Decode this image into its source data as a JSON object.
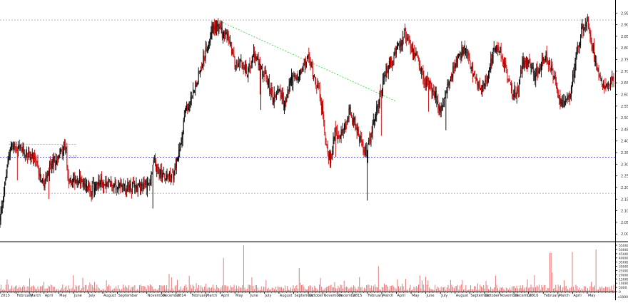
{
  "chart_data": [
    {
      "panel": "price",
      "type": "candlestick",
      "title": "",
      "xlabel": "",
      "ylabel": "",
      "ylim": [
        1.97,
        3.0
      ],
      "grid": false,
      "y_ticks": [
        "2.95",
        "2.90",
        "2.85",
        "2.80",
        "2.75",
        "2.70",
        "2.65",
        "2.60",
        "2.55",
        "2.50",
        "2.45",
        "2.40",
        "2.35",
        "2.30",
        "2.25",
        "2.20",
        "2.15",
        "2.10",
        "2.05",
        "2.00"
      ],
      "x_axis_labels": [
        {
          "label": "2013",
          "t": 0
        },
        {
          "label": "February",
          "t": 1.1
        },
        {
          "label": "March",
          "t": 2.0
        },
        {
          "label": "April",
          "t": 3.0
        },
        {
          "label": "May",
          "t": 4.0
        },
        {
          "label": "June",
          "t": 5.0
        },
        {
          "label": "July",
          "t": 6.0
        },
        {
          "label": "August",
          "t": 7.0
        },
        {
          "label": "September",
          "t": 8.0
        },
        {
          "label": "November",
          "t": 10.0
        },
        {
          "label": "December",
          "t": 11.0
        },
        {
          "label": "2014",
          "t": 12.0
        },
        {
          "label": "February",
          "t": 13.0
        },
        {
          "label": "March",
          "t": 14.0
        },
        {
          "label": "April",
          "t": 15.0
        },
        {
          "label": "May",
          "t": 16.0
        },
        {
          "label": "June",
          "t": 17.0
        },
        {
          "label": "July",
          "t": 18.0
        },
        {
          "label": "August",
          "t": 19.0
        },
        {
          "label": "September",
          "t": 20.0
        },
        {
          "label": "October",
          "t": 21.0
        },
        {
          "label": "November",
          "t": 22.0
        },
        {
          "label": "December",
          "t": 23.0
        },
        {
          "label": "2015",
          "t": 24.0
        },
        {
          "label": "February",
          "t": 25.0
        },
        {
          "label": "March",
          "t": 26.0
        },
        {
          "label": "April",
          "t": 27.0
        },
        {
          "label": "May",
          "t": 28.0
        },
        {
          "label": "June",
          "t": 29.0
        },
        {
          "label": "July",
          "t": 30.0
        },
        {
          "label": "August",
          "t": 31.0
        },
        {
          "label": "September",
          "t": 32.0
        },
        {
          "label": "October",
          "t": 33.0
        },
        {
          "label": "November",
          "t": 34.0
        },
        {
          "label": "December",
          "t": 35.0
        },
        {
          "label": "2016",
          "t": 36.0
        },
        {
          "label": "February",
          "t": 37.0
        },
        {
          "label": "March",
          "t": 38.0
        },
        {
          "label": "April",
          "t": 39.0
        },
        {
          "label": "May",
          "t": 40.0
        }
      ],
      "series": [
        {
          "price_path": [
            [
              0,
              2.06
            ],
            [
              0.7,
              2.38
            ],
            [
              1.5,
              2.36
            ],
            [
              2.2,
              2.33
            ],
            [
              2.6,
              2.28
            ],
            [
              3.0,
              2.2
            ],
            [
              3.5,
              2.3
            ],
            [
              4.0,
              2.34
            ],
            [
              4.5,
              2.39
            ],
            [
              4.6,
              2.22
            ],
            [
              5.3,
              2.24
            ],
            [
              5.8,
              2.2
            ],
            [
              6.2,
              2.19
            ],
            [
              6.8,
              2.22
            ],
            [
              7.5,
              2.21
            ],
            [
              8.2,
              2.21
            ],
            [
              9.0,
              2.2
            ],
            [
              9.6,
              2.21
            ],
            [
              10.2,
              2.22
            ],
            [
              10.5,
              2.31
            ],
            [
              10.8,
              2.27
            ],
            [
              11.3,
              2.24
            ],
            [
              11.8,
              2.25
            ],
            [
              12.2,
              2.35
            ],
            [
              12.6,
              2.52
            ],
            [
              13.0,
              2.58
            ],
            [
              13.6,
              2.7
            ],
            [
              14.0,
              2.78
            ],
            [
              14.4,
              2.88
            ],
            [
              14.7,
              2.9
            ],
            [
              15.2,
              2.86
            ],
            [
              15.6,
              2.83
            ],
            [
              16.0,
              2.73
            ],
            [
              16.4,
              2.76
            ],
            [
              16.8,
              2.69
            ],
            [
              17.3,
              2.77
            ],
            [
              17.8,
              2.71
            ],
            [
              18.2,
              2.66
            ],
            [
              18.6,
              2.58
            ],
            [
              19.0,
              2.63
            ],
            [
              19.4,
              2.55
            ],
            [
              19.8,
              2.67
            ],
            [
              20.2,
              2.66
            ],
            [
              20.6,
              2.71
            ],
            [
              21.0,
              2.76
            ],
            [
              21.4,
              2.68
            ],
            [
              21.8,
              2.6
            ],
            [
              22.2,
              2.4
            ],
            [
              22.5,
              2.3
            ],
            [
              22.8,
              2.45
            ],
            [
              23.3,
              2.42
            ],
            [
              23.8,
              2.53
            ],
            [
              24.2,
              2.47
            ],
            [
              24.6,
              2.39
            ],
            [
              25.0,
              2.35
            ],
            [
              25.5,
              2.5
            ],
            [
              25.9,
              2.6
            ],
            [
              26.3,
              2.7
            ],
            [
              26.8,
              2.76
            ],
            [
              27.3,
              2.82
            ],
            [
              27.6,
              2.86
            ],
            [
              28.0,
              2.8
            ],
            [
              28.4,
              2.76
            ],
            [
              28.8,
              2.68
            ],
            [
              29.2,
              2.64
            ],
            [
              29.6,
              2.6
            ],
            [
              30.0,
              2.52
            ],
            [
              30.4,
              2.62
            ],
            [
              30.8,
              2.7
            ],
            [
              31.2,
              2.75
            ],
            [
              31.6,
              2.8
            ],
            [
              32.0,
              2.73
            ],
            [
              32.4,
              2.65
            ],
            [
              32.8,
              2.62
            ],
            [
              33.2,
              2.68
            ],
            [
              33.6,
              2.78
            ],
            [
              34.0,
              2.8
            ],
            [
              34.4,
              2.72
            ],
            [
              34.8,
              2.62
            ],
            [
              35.2,
              2.6
            ],
            [
              35.6,
              2.73
            ],
            [
              36.0,
              2.75
            ],
            [
              36.4,
              2.68
            ],
            [
              36.8,
              2.72
            ],
            [
              37.2,
              2.76
            ],
            [
              37.6,
              2.7
            ],
            [
              38.0,
              2.6
            ],
            [
              38.4,
              2.55
            ],
            [
              38.8,
              2.58
            ],
            [
              39.2,
              2.75
            ],
            [
              39.6,
              2.87
            ],
            [
              40.0,
              2.92
            ],
            [
              40.3,
              2.83
            ],
            [
              40.6,
              2.73
            ],
            [
              40.9,
              2.68
            ],
            [
              41.2,
              2.63
            ],
            [
              41.5,
              2.65
            ],
            [
              41.8,
              2.66
            ]
          ]
        }
      ],
      "annotations": {
        "horizontal_lines": [
          {
            "y": 2.92,
            "style": "dotted",
            "color": "#9a9a9a"
          },
          {
            "y": 2.385,
            "style": "dotted",
            "color": "#9a9a9a",
            "segment": "left"
          },
          {
            "y": 2.33,
            "style": "dotted",
            "color": "#3b3bd9"
          },
          {
            "y": 2.175,
            "style": "dotted",
            "color": "#9a9a9a"
          }
        ],
        "trendline": {
          "from": [
            14.8,
            2.92
          ],
          "to": [
            27.0,
            2.57
          ],
          "color": "#33cc33",
          "style": "dotted"
        },
        "small_label": "2.27"
      }
    },
    {
      "panel": "volume",
      "type": "bar",
      "ylim": [
        0,
        55000
      ],
      "y_ticks": [
        "55000",
        "50000",
        "45000",
        "40000",
        "35000",
        "30000",
        "25000",
        "20000",
        "15000",
        "10000",
        "5000",
        "0"
      ],
      "scale_factor": "x1000",
      "notable_spikes": [
        {
          "t": 15.2,
          "value": 40000
        },
        {
          "t": 16.6,
          "value": 55000
        },
        {
          "t": 20.4,
          "value": 28000
        },
        {
          "t": 25.8,
          "value": 30000
        },
        {
          "t": 37.5,
          "value": 46000
        },
        {
          "t": 39.0,
          "value": 47000
        },
        {
          "t": 40.6,
          "value": 50000
        }
      ]
    }
  ],
  "colors": {
    "up": "#000000",
    "down": "#cc0000",
    "volume": "#e05a5a",
    "axis": "#000000",
    "support": "#3b3bd9",
    "trend": "#33cc33",
    "dotted": "#9a9a9a"
  }
}
